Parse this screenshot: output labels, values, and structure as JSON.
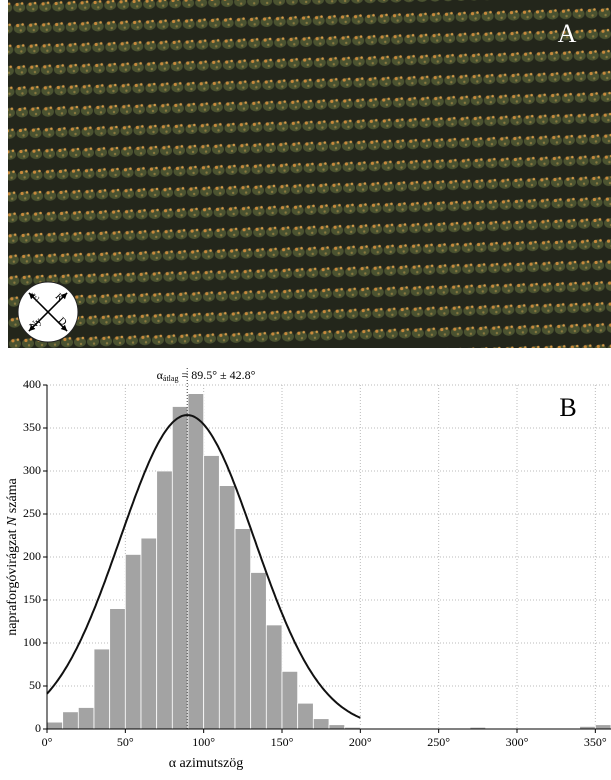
{
  "photo": {
    "label": "A",
    "compass": [
      "É",
      "K",
      "D",
      "Ny"
    ]
  },
  "chart_data": {
    "type": "histogram",
    "panel_label": "B",
    "annotation": {
      "symbol": "α",
      "subscript": "átlag",
      "text": "= 89.5° ± 42.8°"
    },
    "xlabel": "α azimutszög",
    "ylabel": [
      "napraforgóvirágzat ",
      "N",
      " száma"
    ],
    "bins": [
      0,
      10,
      20,
      30,
      40,
      50,
      60,
      70,
      80,
      90,
      100,
      110,
      120,
      130,
      140,
      150,
      160,
      170,
      180,
      190,
      200,
      210,
      220,
      230,
      240,
      250,
      260,
      270,
      280,
      290,
      300,
      310,
      320,
      330,
      340,
      350,
      360
    ],
    "counts": [
      8,
      20,
      25,
      93,
      140,
      203,
      222,
      300,
      375,
      390,
      318,
      283,
      233,
      182,
      121,
      67,
      30,
      12,
      5,
      2,
      1,
      0,
      1,
      0,
      0,
      1,
      0,
      2,
      0,
      0,
      0,
      0,
      0,
      0,
      3,
      5
    ],
    "color": "#a3a3a3",
    "fit": {
      "mean": 89.5,
      "sd": 42.8,
      "peak": 365
    },
    "xlim": [
      0,
      360
    ],
    "ylim": [
      0,
      400
    ],
    "xticks": [
      {
        "value": 0,
        "label": "0°"
      },
      {
        "value": 50,
        "label": "50°"
      },
      {
        "value": 100,
        "label": "100°"
      },
      {
        "value": 150,
        "label": "150°"
      },
      {
        "value": 200,
        "label": "200°"
      },
      {
        "value": 250,
        "label": "250°"
      },
      {
        "value": 300,
        "label": "300°"
      },
      {
        "value": 350,
        "label": "350°"
      }
    ],
    "yticks": [
      0,
      50,
      100,
      150,
      200,
      250,
      300,
      350,
      400
    ],
    "grid": true
  }
}
